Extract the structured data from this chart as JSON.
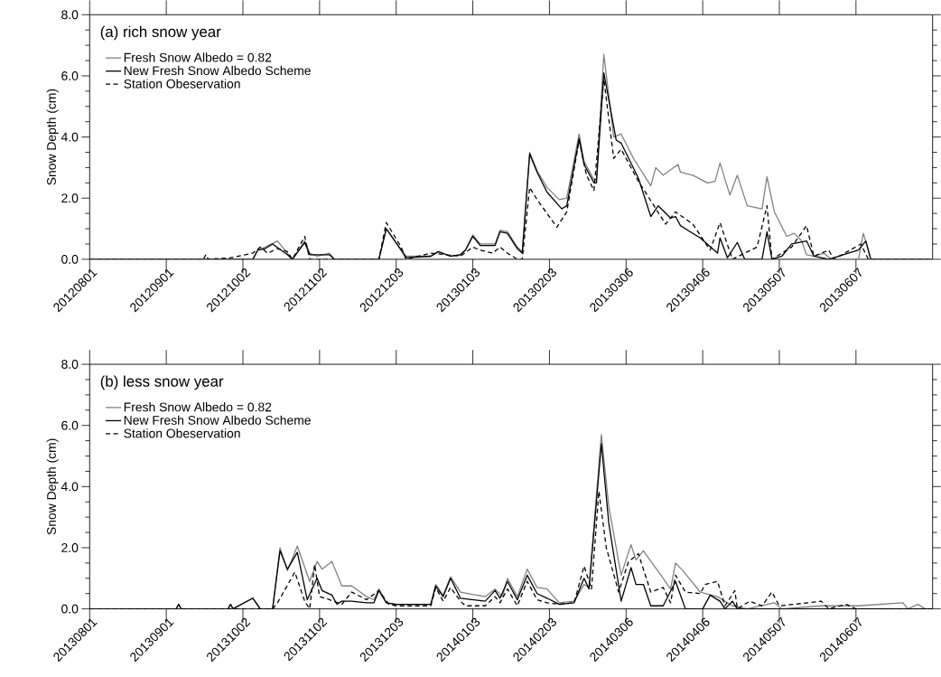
{
  "chart_data": [
    {
      "type": "line",
      "title": "(a) rich snow year",
      "ylabel": "Snow Depth (cm)",
      "xlim": [
        "2012-08-01",
        "2013-07-08"
      ],
      "xticks": [
        {
          "value": "2012-08-01",
          "label": "20120801"
        },
        {
          "value": "2012-09-01",
          "label": "20120901"
        },
        {
          "value": "2012-10-02",
          "label": "20121002"
        },
        {
          "value": "2012-11-02",
          "label": "20121102"
        },
        {
          "value": "2012-12-03",
          "label": "20121203"
        },
        {
          "value": "2013-01-03",
          "label": "20130103"
        },
        {
          "value": "2013-02-03",
          "label": "20130203"
        },
        {
          "value": "2013-03-06",
          "label": "20130306"
        },
        {
          "value": "2013-04-06",
          "label": "20130406"
        },
        {
          "value": "2013-05-07",
          "label": "20130507"
        },
        {
          "value": "2013-06-07",
          "label": "20130607"
        }
      ],
      "ylim": [
        0,
        8
      ],
      "yticks": [
        {
          "value": 0,
          "label": "0.0"
        },
        {
          "value": 2,
          "label": "2.0"
        },
        {
          "value": 4,
          "label": "4.0"
        },
        {
          "value": 6,
          "label": "6.0"
        },
        {
          "value": 8,
          "label": "8.0"
        }
      ],
      "legend": "top left",
      "series": [
        {
          "name": "Fresh Snow Albedo = 0.82",
          "color": "#808080",
          "line_style": "solid",
          "x": [
            "2012-08-01",
            "2012-10-06",
            "2012-10-08",
            "2012-10-11",
            "2012-10-16",
            "2012-10-20",
            "2012-10-22",
            "2012-10-27",
            "2012-10-29",
            "2012-11-01",
            "2012-11-06",
            "2012-11-08",
            "2012-11-26",
            "2012-11-29",
            "2012-12-05",
            "2012-12-07",
            "2012-12-17",
            "2012-12-20",
            "2012-12-25",
            "2012-12-29",
            "2012-12-31",
            "2013-01-03",
            "2013-01-06",
            "2013-01-12",
            "2013-01-14",
            "2013-01-17",
            "2013-01-21",
            "2013-01-23",
            "2013-01-26",
            "2013-01-29",
            "2013-02-02",
            "2013-02-07",
            "2013-02-10",
            "2013-02-15",
            "2013-02-17",
            "2013-02-21",
            "2013-02-22",
            "2013-02-25",
            "2013-03-01",
            "2013-03-04",
            "2013-03-09",
            "2013-03-16",
            "2013-03-18",
            "2013-03-21",
            "2013-03-27",
            "2013-03-28",
            "2013-04-02",
            "2013-04-08",
            "2013-04-11",
            "2013-04-13",
            "2013-04-17",
            "2013-04-20",
            "2013-04-24",
            "2013-04-30",
            "2013-05-02",
            "2013-05-05",
            "2013-05-10",
            "2013-05-13",
            "2013-05-16",
            "2013-05-18",
            "2013-05-21",
            "2013-05-25",
            "2013-05-28",
            "2013-06-08",
            "2013-06-10",
            "2013-06-13",
            "2013-07-08"
          ],
          "values": [
            0,
            0,
            0.3,
            0.4,
            0.6,
            0.2,
            0,
            0.6,
            0.2,
            0.1,
            0.2,
            0,
            0,
            1.0,
            0.3,
            0.1,
            0.1,
            0.25,
            0.1,
            0.15,
            0.3,
            0.8,
            0.5,
            0.5,
            0.95,
            0.9,
            0.4,
            0.25,
            3.5,
            2.9,
            2.35,
            1.95,
            2.0,
            4.1,
            3.2,
            2.6,
            2.6,
            6.7,
            4.0,
            4.1,
            3.3,
            2.4,
            3.0,
            2.75,
            3.1,
            2.85,
            2.75,
            2.5,
            2.55,
            3.15,
            2.1,
            2.75,
            1.75,
            1.65,
            2.7,
            1.55,
            0.75,
            0.85,
            0.6,
            0.15,
            0.1,
            0.2,
            0,
            0,
            0.85,
            0,
            0
          ]
        },
        {
          "name": "New Fresh Snow Albedo Scheme",
          "color": "#000000",
          "line_style": "solid",
          "x": [
            "2012-08-01",
            "2012-10-06",
            "2012-10-08",
            "2012-10-11",
            "2012-10-14",
            "2012-10-20",
            "2012-10-22",
            "2012-10-27",
            "2012-10-29",
            "2012-11-06",
            "2012-11-08",
            "2012-11-26",
            "2012-11-29",
            "2012-12-05",
            "2012-12-07",
            "2012-12-17",
            "2012-12-20",
            "2012-12-25",
            "2012-12-29",
            "2012-12-31",
            "2013-01-03",
            "2013-01-06",
            "2013-01-12",
            "2013-01-14",
            "2013-01-17",
            "2013-01-21",
            "2013-01-23",
            "2013-01-26",
            "2013-01-29",
            "2013-02-02",
            "2013-02-08",
            "2013-02-10",
            "2013-02-15",
            "2013-02-17",
            "2013-02-21",
            "2013-02-22",
            "2013-02-25",
            "2013-03-02",
            "2013-03-04",
            "2013-03-11",
            "2013-03-16",
            "2013-03-19",
            "2013-03-24",
            "2013-03-26",
            "2013-03-28",
            "2013-04-05",
            "2013-04-12",
            "2013-04-13",
            "2013-04-16",
            "2013-04-20",
            "2013-04-23",
            "2013-04-30",
            "2013-05-02",
            "2013-05-04",
            "2013-05-08",
            "2013-05-12",
            "2013-05-18",
            "2013-05-21",
            "2013-05-27",
            "2013-06-08",
            "2013-06-11",
            "2013-06-13",
            "2013-07-08"
          ],
          "values": [
            0,
            0,
            0.3,
            0.35,
            0.5,
            0.15,
            0,
            0.55,
            0.15,
            0.15,
            0,
            0,
            1.0,
            0.3,
            0.05,
            0.1,
            0.25,
            0.1,
            0.15,
            0.3,
            0.75,
            0.45,
            0.45,
            0.9,
            0.85,
            0.35,
            0.2,
            3.45,
            2.85,
            2.2,
            1.65,
            1.75,
            3.95,
            3.1,
            2.5,
            2.5,
            6.1,
            3.9,
            3.8,
            2.65,
            1.4,
            1.75,
            1.35,
            1.4,
            1.1,
            0.7,
            0.2,
            0.7,
            0.05,
            0.55,
            0,
            0,
            0.9,
            0,
            0.1,
            0.5,
            0.6,
            0.1,
            0,
            0.3,
            0.6,
            0,
            0
          ]
        },
        {
          "name": "Station Obeservation",
          "color": "#000000",
          "line_style": "dashed",
          "x": [
            "2012-08-01",
            "2012-09-16",
            "2012-09-17",
            "2012-09-18",
            "2012-09-27",
            "2012-10-06",
            "2012-10-09",
            "2012-10-12",
            "2012-10-16",
            "2012-10-20",
            "2012-10-22",
            "2012-10-27",
            "2012-10-29",
            "2012-11-26",
            "2012-11-29",
            "2012-12-05",
            "2012-12-07",
            "2012-12-17",
            "2012-12-29",
            "2013-01-03",
            "2013-01-06",
            "2013-01-11",
            "2013-01-14",
            "2013-01-17",
            "2013-01-21",
            "2013-01-23",
            "2013-01-26",
            "2013-01-29",
            "2013-02-06",
            "2013-02-10",
            "2013-02-15",
            "2013-02-18",
            "2013-02-21",
            "2013-02-25",
            "2013-03-01",
            "2013-03-04",
            "2013-03-11",
            "2013-03-22",
            "2013-03-26",
            "2013-04-02",
            "2013-04-09",
            "2013-04-13",
            "2013-04-18",
            "2013-04-28",
            "2013-05-02",
            "2013-05-04",
            "2013-05-08",
            "2013-05-12",
            "2013-05-18",
            "2013-05-21",
            "2013-05-27",
            "2013-05-29",
            "2013-06-09",
            "2013-06-12",
            "2013-07-08"
          ],
          "values": [
            0,
            0,
            0.15,
            0,
            0.05,
            0.2,
            0.4,
            0.2,
            0.35,
            0.25,
            0,
            0.75,
            0,
            0,
            1.2,
            0.4,
            0,
            0.2,
            0.1,
            0.4,
            0.3,
            0.2,
            0.4,
            0.2,
            0,
            0,
            2.35,
            1.95,
            1.05,
            1.55,
            3.9,
            2.75,
            2.25,
            5.9,
            3.3,
            3.6,
            2.55,
            1.15,
            1.55,
            1.15,
            0.3,
            1.2,
            0,
            0.4,
            1.75,
            0,
            0.2,
            0.4,
            1.1,
            0.1,
            0.3,
            0,
            0.5,
            0,
            0
          ]
        }
      ]
    },
    {
      "type": "line",
      "title": "(b) less snow year",
      "ylabel": "Snow Depth (cm)",
      "xlim": [
        "2013-08-01",
        "2014-07-08"
      ],
      "xticks": [
        {
          "value": "2013-08-01",
          "label": "20130801"
        },
        {
          "value": "2013-09-01",
          "label": "20130901"
        },
        {
          "value": "2013-10-02",
          "label": "20131002"
        },
        {
          "value": "2013-11-02",
          "label": "20131102"
        },
        {
          "value": "2013-12-03",
          "label": "20131203"
        },
        {
          "value": "2014-01-03",
          "label": "20140103"
        },
        {
          "value": "2014-02-03",
          "label": "20140203"
        },
        {
          "value": "2014-03-06",
          "label": "20140306"
        },
        {
          "value": "2014-04-06",
          "label": "20140406"
        },
        {
          "value": "2014-05-07",
          "label": "20140507"
        },
        {
          "value": "2014-06-07",
          "label": "20140607"
        }
      ],
      "ylim": [
        0,
        8
      ],
      "yticks": [
        {
          "value": 0,
          "label": "0.0"
        },
        {
          "value": 2,
          "label": "2.0"
        },
        {
          "value": 4,
          "label": "4.0"
        },
        {
          "value": 6,
          "label": "6.0"
        },
        {
          "value": 8,
          "label": "8.0"
        }
      ],
      "legend": "top left",
      "series": [
        {
          "name": "Fresh Snow Albedo = 0.82",
          "color": "#808080",
          "line_style": "solid",
          "x": [
            "2013-08-01",
            "2013-09-05",
            "2013-09-06",
            "2013-09-07",
            "2013-09-26",
            "2013-09-27",
            "2013-09-28",
            "2013-10-06",
            "2013-10-09",
            "2013-10-14",
            "2013-10-17",
            "2013-10-20",
            "2013-10-24",
            "2013-10-29",
            "2013-11-01",
            "2013-11-03",
            "2013-11-07",
            "2013-11-11",
            "2013-11-15",
            "2013-11-21",
            "2013-11-24",
            "2013-11-26",
            "2013-11-29",
            "2013-12-03",
            "2013-12-17",
            "2013-12-19",
            "2013-12-22",
            "2013-12-25",
            "2013-12-29",
            "2014-01-08",
            "2014-01-12",
            "2014-01-15",
            "2014-01-17",
            "2014-01-21",
            "2014-01-25",
            "2014-01-29",
            "2014-02-02",
            "2014-02-07",
            "2014-02-13",
            "2014-02-17",
            "2014-02-19",
            "2014-02-24",
            "2014-02-27",
            "2014-03-04",
            "2014-03-08",
            "2014-03-10",
            "2014-03-13",
            "2014-03-21",
            "2014-03-24",
            "2014-03-26",
            "2014-03-29",
            "2014-04-05",
            "2014-04-12",
            "2014-04-18",
            "2014-04-24",
            "2014-05-05",
            "2014-05-08",
            "2014-05-24",
            "2014-06-08",
            "2014-06-26",
            "2014-06-28",
            "2014-07-02",
            "2014-07-05",
            "2014-07-08"
          ],
          "values": [
            0,
            0,
            0.15,
            0,
            0,
            0.15,
            0,
            0.35,
            0,
            0,
            2.0,
            1.25,
            2.05,
            0.9,
            1.55,
            1.3,
            1.55,
            0.75,
            0.75,
            0.4,
            0.3,
            0.65,
            0.2,
            0.15,
            0.15,
            0.8,
            0.45,
            1.05,
            0.55,
            0.4,
            0.65,
            0.4,
            1.0,
            0.4,
            1.3,
            0.7,
            0.65,
            0.2,
            0.25,
            0.8,
            0.7,
            5.7,
            3.35,
            1.1,
            2.1,
            1.6,
            1.9,
            1.0,
            0.65,
            1.5,
            1.25,
            0.55,
            0.4,
            0.1,
            0,
            0.2,
            0,
            0.1,
            0.1,
            0.2,
            0,
            0.15,
            0,
            0
          ]
        },
        {
          "name": "New Fresh Snow Albedo Scheme",
          "color": "#000000",
          "line_style": "solid",
          "x": [
            "2013-08-01",
            "2013-09-05",
            "2013-09-06",
            "2013-09-07",
            "2013-09-26",
            "2013-09-27",
            "2013-09-28",
            "2013-10-06",
            "2013-10-09",
            "2013-10-14",
            "2013-10-17",
            "2013-10-20",
            "2013-10-24",
            "2013-10-28",
            "2013-11-01",
            "2013-11-03",
            "2013-11-07",
            "2013-11-09",
            "2013-11-11",
            "2013-11-15",
            "2013-11-21",
            "2013-11-24",
            "2013-11-26",
            "2013-11-29",
            "2013-12-03",
            "2013-12-17",
            "2013-12-19",
            "2013-12-22",
            "2013-12-25",
            "2013-12-29",
            "2014-01-08",
            "2014-01-12",
            "2014-01-14",
            "2014-01-17",
            "2014-01-21",
            "2014-01-25",
            "2014-01-29",
            "2014-02-02",
            "2014-02-07",
            "2014-02-13",
            "2014-02-17",
            "2014-02-19",
            "2014-02-24",
            "2014-02-27",
            "2014-03-04",
            "2014-03-08",
            "2014-03-10",
            "2014-03-13",
            "2014-03-16",
            "2014-03-21",
            "2014-03-26",
            "2014-03-30",
            "2014-04-06",
            "2014-04-09",
            "2014-04-13",
            "2014-04-15",
            "2014-04-18",
            "2014-04-20",
            "2014-07-08"
          ],
          "values": [
            0,
            0,
            0.15,
            0,
            0,
            0.15,
            0,
            0.35,
            0,
            0,
            1.9,
            1.3,
            1.85,
            0.3,
            1.0,
            0.6,
            0.45,
            0.15,
            0.25,
            0.25,
            0.2,
            0.2,
            0.6,
            0.2,
            0.15,
            0.15,
            0.75,
            0.4,
            1.0,
            0.35,
            0.25,
            0.6,
            0.35,
            0.9,
            0.3,
            1.1,
            0.5,
            0.35,
            0.15,
            0.2,
            1.0,
            0.65,
            5.4,
            2.8,
            0.25,
            1.35,
            0.8,
            0.8,
            0.1,
            0.1,
            0.9,
            0,
            0,
            0.45,
            0.25,
            0,
            0.25,
            0,
            0
          ]
        },
        {
          "name": "Station Obeservation",
          "color": "#000000",
          "line_style": "dashed",
          "x": [
            "2013-08-01",
            "2013-10-14",
            "2013-10-16",
            "2013-10-23",
            "2013-10-27",
            "2013-10-29",
            "2013-10-31",
            "2013-11-02",
            "2013-11-06",
            "2013-11-11",
            "2013-11-15",
            "2013-11-21",
            "2013-11-26",
            "2013-11-30",
            "2013-12-03",
            "2013-12-17",
            "2013-12-19",
            "2013-12-22",
            "2013-12-25",
            "2013-12-29",
            "2013-12-31",
            "2014-01-08",
            "2014-01-12",
            "2014-01-14",
            "2014-01-17",
            "2014-01-21",
            "2014-01-25",
            "2014-01-29",
            "2014-02-02",
            "2014-02-07",
            "2014-02-13",
            "2014-02-17",
            "2014-02-20",
            "2014-02-23",
            "2014-02-26",
            "2014-03-03",
            "2014-03-07",
            "2014-03-11",
            "2014-03-16",
            "2014-03-21",
            "2014-03-24",
            "2014-03-26",
            "2014-03-30",
            "2014-04-05",
            "2014-04-07",
            "2014-04-12",
            "2014-04-15",
            "2014-04-19",
            "2014-04-20",
            "2014-04-25",
            "2014-04-30",
            "2014-05-04",
            "2014-05-07",
            "2014-05-13",
            "2014-05-24",
            "2014-05-27",
            "2014-06-03",
            "2014-06-07",
            "2014-07-08"
          ],
          "values": [
            0,
            0,
            0.2,
            1.2,
            0.25,
            0,
            1.45,
            0.4,
            0.3,
            0.15,
            0.55,
            0.3,
            0.6,
            0.15,
            0.1,
            0.1,
            0.7,
            0.25,
            0.7,
            0.25,
            0.1,
            0.1,
            0.4,
            0.2,
            0.65,
            0.1,
            0.9,
            0.3,
            0.2,
            0.15,
            0.2,
            1.4,
            0.65,
            3.85,
            2.0,
            0.55,
            1.55,
            1.8,
            0.55,
            0.7,
            0.2,
            1.1,
            0.55,
            0.5,
            0.8,
            0.9,
            0.1,
            0.6,
            0,
            0.25,
            0.1,
            0.55,
            0.1,
            0.15,
            0.25,
            0,
            0.15,
            0,
            0
          ]
        }
      ]
    }
  ]
}
